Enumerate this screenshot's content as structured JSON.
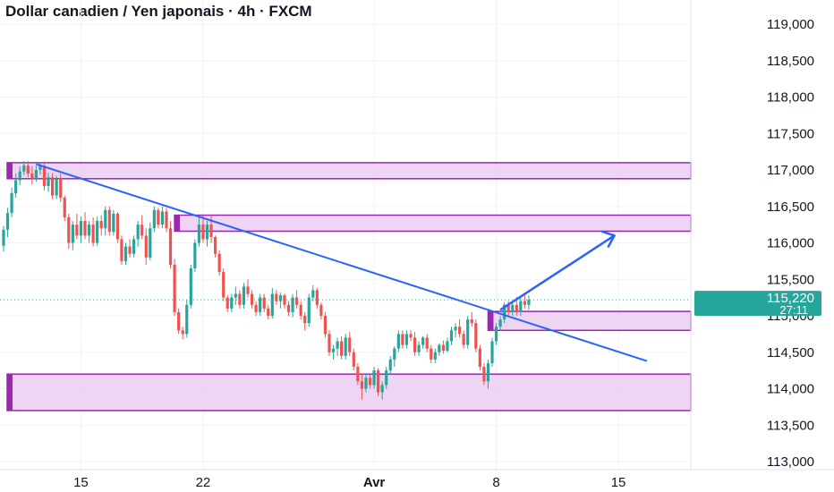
{
  "title": "Dollar canadien / Yen japonais · 4h · FXCM",
  "chart_data": {
    "type": "candlestick",
    "title": "Dollar canadien / Yen japonais · 4h · FXCM",
    "ylim": [
      112900,
      119300
    ],
    "y_ticks": [
      113000,
      113500,
      114000,
      114500,
      115000,
      115500,
      116000,
      116500,
      117000,
      117500,
      118000,
      118500,
      119000
    ],
    "y_tick_labels": [
      "113,000",
      "113,500",
      "114,000",
      "114,500",
      "115,000",
      "115,500",
      "116,000",
      "116,500",
      "117,000",
      "117,500",
      "118,000",
      "118,500",
      "119,000"
    ],
    "x_ticks": [
      {
        "label": "15",
        "bold": false,
        "index": 19
      },
      {
        "label": "22",
        "bold": false,
        "index": 49
      },
      {
        "label": "Avr",
        "bold": true,
        "index": 91
      },
      {
        "label": "8",
        "bold": false,
        "index": 121
      },
      {
        "label": "15",
        "bold": false,
        "index": 151
      }
    ],
    "last_price": {
      "value": 115220,
      "label": "115,220",
      "countdown": "27:11"
    },
    "colors": {
      "up": "#26a69a",
      "down": "#ef5350",
      "zone_fill": "#e8c7ef",
      "zone_border": "#9c27b0",
      "trendline": "#2962ff",
      "price_badge": "#26a69a"
    },
    "zones": [
      {
        "from": 116880,
        "to": 117100,
        "start_index": 0
      },
      {
        "from": 116160,
        "to": 116380,
        "start_index": 42
      },
      {
        "from": 114800,
        "to": 115060,
        "start_index": 119
      },
      {
        "from": 113700,
        "to": 114200,
        "start_index": 0
      }
    ],
    "trendline": {
      "start": {
        "index": 8,
        "price": 117080
      },
      "end": {
        "index": 158,
        "price": 114380
      }
    },
    "projection_arrow": {
      "start": {
        "index": 122,
        "price": 115080
      },
      "end": {
        "index": 150,
        "price": 116100
      }
    },
    "candles": [
      [
        115960,
        116230,
        115880,
        116180
      ],
      [
        116180,
        116480,
        116080,
        116410
      ],
      [
        116410,
        116760,
        116350,
        116680
      ],
      [
        116680,
        116950,
        116620,
        116860
      ],
      [
        116860,
        117050,
        116790,
        116980
      ],
      [
        116980,
        117120,
        116930,
        117060
      ],
      [
        117060,
        117120,
        116900,
        116950
      ],
      [
        116950,
        117050,
        116800,
        116880
      ],
      [
        116880,
        117060,
        116840,
        117000
      ],
      [
        117000,
        117100,
        116940,
        117060
      ],
      [
        117060,
        117100,
        116720,
        116780
      ],
      [
        116780,
        116960,
        116700,
        116900
      ],
      [
        116900,
        116960,
        116600,
        116650
      ],
      [
        116650,
        116920,
        116600,
        116880
      ],
      [
        116880,
        116950,
        116560,
        116620
      ],
      [
        116620,
        116650,
        116300,
        116350
      ],
      [
        116350,
        116400,
        115920,
        116000
      ],
      [
        116000,
        116300,
        115900,
        116250
      ],
      [
        116250,
        116400,
        116050,
        116100
      ],
      [
        116100,
        116360,
        116000,
        116300
      ],
      [
        116300,
        116420,
        116050,
        116100
      ],
      [
        116100,
        116300,
        116000,
        116250
      ],
      [
        116250,
        116350,
        115950,
        116000
      ],
      [
        116000,
        116360,
        115960,
        116300
      ],
      [
        116300,
        116380,
        116100,
        116200
      ],
      [
        116200,
        116500,
        116100,
        116450
      ],
      [
        116450,
        116500,
        116100,
        116150
      ],
      [
        116150,
        116450,
        116100,
        116400
      ],
      [
        116400,
        116420,
        116000,
        116050
      ],
      [
        116050,
        116100,
        115700,
        115750
      ],
      [
        115750,
        116000,
        115700,
        115950
      ],
      [
        115950,
        116050,
        115800,
        115850
      ],
      [
        115850,
        116100,
        115800,
        116050
      ],
      [
        116050,
        116300,
        115950,
        116250
      ],
      [
        116250,
        116380,
        116050,
        116100
      ],
      [
        116100,
        116200,
        115700,
        115800
      ],
      [
        115800,
        116280,
        115760,
        116200
      ],
      [
        116200,
        116500,
        116150,
        116450
      ],
      [
        116450,
        116480,
        116200,
        116250
      ],
      [
        116250,
        116500,
        116200,
        116430
      ],
      [
        116430,
        116480,
        116150,
        116200
      ],
      [
        116200,
        116300,
        115650,
        115700
      ],
      [
        115700,
        115780,
        115000,
        115050
      ],
      [
        115050,
        115100,
        114750,
        114800
      ],
      [
        114800,
        114850,
        114680,
        114750
      ],
      [
        114750,
        115220,
        114700,
        115150
      ],
      [
        115150,
        115700,
        115100,
        115650
      ],
      [
        115650,
        116050,
        115600,
        116000
      ],
      [
        116000,
        116350,
        115950,
        116250
      ],
      [
        116250,
        116380,
        116000,
        116050
      ],
      [
        116050,
        116300,
        115950,
        116250
      ],
      [
        116250,
        116380,
        116000,
        116080
      ],
      [
        116080,
        116100,
        115800,
        115850
      ],
      [
        115850,
        115900,
        115550,
        115600
      ],
      [
        115600,
        115650,
        115200,
        115250
      ],
      [
        115250,
        115280,
        115050,
        115100
      ],
      [
        115100,
        115300,
        115050,
        115250
      ],
      [
        115250,
        115400,
        115150,
        115300
      ],
      [
        115300,
        115350,
        115100,
        115150
      ],
      [
        115150,
        115450,
        115100,
        115400
      ],
      [
        115400,
        115500,
        115250,
        115300
      ],
      [
        115300,
        115350,
        115100,
        115150
      ],
      [
        115150,
        115200,
        115000,
        115050
      ],
      [
        115050,
        115300,
        115000,
        115250
      ],
      [
        115250,
        115300,
        115050,
        115100
      ],
      [
        115100,
        115150,
        114950,
        115000
      ],
      [
        115000,
        115380,
        114960,
        115300
      ],
      [
        115300,
        115350,
        115150,
        115200
      ],
      [
        115200,
        115320,
        115100,
        115280
      ],
      [
        115280,
        115300,
        115100,
        115150
      ],
      [
        115150,
        115200,
        115000,
        115050
      ],
      [
        115050,
        115300,
        114980,
        115250
      ],
      [
        115250,
        115350,
        115100,
        115150
      ],
      [
        115150,
        115200,
        114950,
        115000
      ],
      [
        115000,
        115050,
        114800,
        114900
      ],
      [
        114900,
        115300,
        114850,
        115250
      ],
      [
        115250,
        115420,
        115200,
        115350
      ],
      [
        115350,
        115380,
        115100,
        115150
      ],
      [
        115150,
        115180,
        114950,
        115000
      ],
      [
        115000,
        115050,
        114700,
        114750
      ],
      [
        114750,
        114800,
        114450,
        114500
      ],
      [
        114500,
        114600,
        114400,
        114550
      ],
      [
        114550,
        114700,
        114450,
        114650
      ],
      [
        114650,
        114720,
        114400,
        114450
      ],
      [
        114450,
        114750,
        114400,
        114700
      ],
      [
        114700,
        114780,
        114450,
        114500
      ],
      [
        114500,
        114550,
        114250,
        114300
      ],
      [
        114300,
        114350,
        114050,
        114100
      ],
      [
        114100,
        114200,
        113850,
        114000
      ],
      [
        114000,
        114200,
        113950,
        114150
      ],
      [
        114150,
        114200,
        114000,
        114050
      ],
      [
        114050,
        114300,
        114000,
        114250
      ],
      [
        114250,
        114280,
        113900,
        113950
      ],
      [
        113950,
        114100,
        113850,
        114050
      ],
      [
        114050,
        114300,
        114000,
        114250
      ],
      [
        114250,
        114450,
        114200,
        114400
      ],
      [
        114400,
        114580,
        114300,
        114550
      ],
      [
        114550,
        114800,
        114500,
        114750
      ],
      [
        114750,
        114800,
        114550,
        114600
      ],
      [
        114600,
        114800,
        114550,
        114750
      ],
      [
        114750,
        114800,
        114650,
        114700
      ],
      [
        114700,
        114780,
        114450,
        114500
      ],
      [
        114500,
        114650,
        114450,
        114600
      ],
      [
        114600,
        114720,
        114550,
        114700
      ],
      [
        114700,
        114750,
        114500,
        114550
      ],
      [
        114550,
        114600,
        114350,
        114400
      ],
      [
        114400,
        114550,
        114350,
        114500
      ],
      [
        114500,
        114620,
        114450,
        114600
      ],
      [
        114600,
        114660,
        114480,
        114520
      ],
      [
        114520,
        114700,
        114500,
        114650
      ],
      [
        114650,
        114850,
        114600,
        114800
      ],
      [
        114800,
        114900,
        114700,
        114850
      ],
      [
        114850,
        114950,
        114700,
        114750
      ],
      [
        114750,
        114800,
        114550,
        114600
      ],
      [
        114600,
        115000,
        114550,
        114950
      ],
      [
        114950,
        115050,
        114850,
        114900
      ],
      [
        114900,
        114950,
        114500,
        114550
      ],
      [
        114550,
        114600,
        114250,
        114300
      ],
      [
        114300,
        114350,
        114050,
        114100
      ],
      [
        114100,
        114400,
        114000,
        114350
      ],
      [
        114350,
        114700,
        114300,
        114650
      ],
      [
        114650,
        114900,
        114600,
        114850
      ],
      [
        114850,
        115000,
        114800,
        114950
      ],
      [
        114950,
        115180,
        114900,
        115150
      ],
      [
        115150,
        115200,
        115000,
        115050
      ],
      [
        115050,
        115200,
        115000,
        115150
      ],
      [
        115150,
        115260,
        115000,
        115050
      ],
      [
        115050,
        115250,
        115000,
        115200
      ],
      [
        115200,
        115300,
        115100,
        115150
      ],
      [
        115150,
        115280,
        115080,
        115220
      ]
    ]
  }
}
